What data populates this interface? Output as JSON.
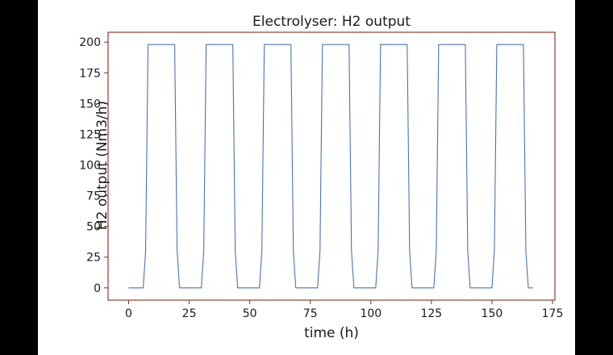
{
  "chart_data": {
    "type": "line",
    "title": "Electrolyser: H2 output",
    "xlabel": "time (h)",
    "ylabel": "H2 output (Nm3/h)",
    "xlim": [
      -8.5,
      176
    ],
    "ylim": [
      -10,
      208
    ],
    "xticks": [
      0,
      25,
      50,
      75,
      100,
      125,
      150,
      175
    ],
    "yticks": [
      0,
      25,
      50,
      75,
      100,
      125,
      150,
      175,
      200
    ],
    "xtick_labels": [
      "0",
      "25",
      "50",
      "75",
      "100",
      "125",
      "150",
      "175"
    ],
    "ytick_labels": [
      "0",
      "25",
      "50",
      "75",
      "100",
      "125",
      "150",
      "175",
      "200"
    ],
    "grid": false,
    "series": [
      {
        "color": "#4c72b0",
        "x": [
          0,
          6,
          7,
          8,
          19,
          20,
          21,
          30,
          31,
          32,
          43,
          44,
          45,
          54,
          55,
          56,
          67,
          68,
          69,
          78,
          79,
          80,
          91,
          92,
          93,
          102,
          103,
          104,
          115,
          116,
          117,
          126,
          127,
          128,
          139,
          140,
          141,
          150,
          151,
          152,
          163,
          164,
          165,
          167
        ],
        "y": [
          0,
          0,
          30,
          198,
          198,
          30,
          0,
          0,
          30,
          198,
          198,
          30,
          0,
          0,
          30,
          198,
          198,
          30,
          0,
          0,
          30,
          198,
          198,
          30,
          0,
          0,
          30,
          198,
          198,
          30,
          0,
          0,
          30,
          198,
          198,
          30,
          0,
          0,
          30,
          198,
          198,
          30,
          0,
          0
        ]
      }
    ]
  },
  "colors": {
    "axes_frame": "#7a2e1e",
    "line": "#4c72b0",
    "background": "#ffffff",
    "outer": "#000000"
  }
}
